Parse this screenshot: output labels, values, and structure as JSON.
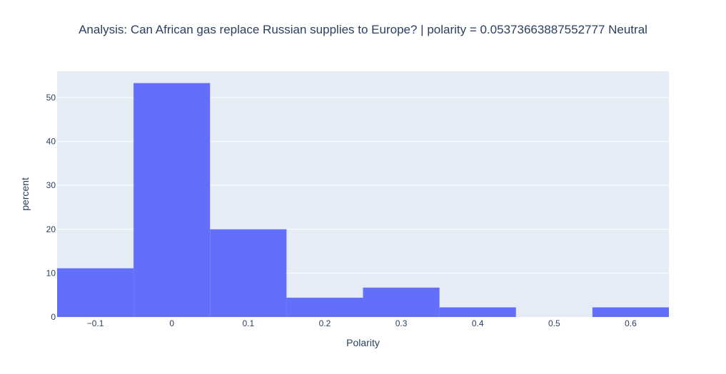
{
  "chart_data": {
    "type": "bar",
    "title": "Analysis: Can African gas replace Russian supplies to Europe?  | polarity = 0.05373663887552777 Neutral",
    "xlabel": "Polarity",
    "ylabel": "percent",
    "xlim": [
      -0.15,
      0.65
    ],
    "ylim": [
      0,
      56
    ],
    "grid": true,
    "legend": "none",
    "bar_color": "#636efa",
    "plot_bg": "#e5ecf6",
    "x_ticks": [
      -0.1,
      0,
      0.1,
      0.2,
      0.3,
      0.4,
      0.5,
      0.6
    ],
    "x_tick_labels": [
      "−0.1",
      "0",
      "0.1",
      "0.2",
      "0.3",
      "0.4",
      "0.5",
      "0.6"
    ],
    "y_ticks": [
      0,
      10,
      20,
      30,
      40,
      50
    ],
    "y_tick_labels": [
      "0",
      "10",
      "20",
      "30",
      "40",
      "50"
    ],
    "bins": [
      {
        "x0": -0.15,
        "x1": -0.05,
        "value": 11.1
      },
      {
        "x0": -0.05,
        "x1": 0.05,
        "value": 53.3
      },
      {
        "x0": 0.05,
        "x1": 0.15,
        "value": 20.0
      },
      {
        "x0": 0.15,
        "x1": 0.25,
        "value": 4.4
      },
      {
        "x0": 0.25,
        "x1": 0.35,
        "value": 6.7
      },
      {
        "x0": 0.35,
        "x1": 0.45,
        "value": 2.2
      },
      {
        "x0": 0.45,
        "x1": 0.55,
        "value": 0
      },
      {
        "x0": 0.55,
        "x1": 0.65,
        "value": 2.2
      }
    ]
  }
}
